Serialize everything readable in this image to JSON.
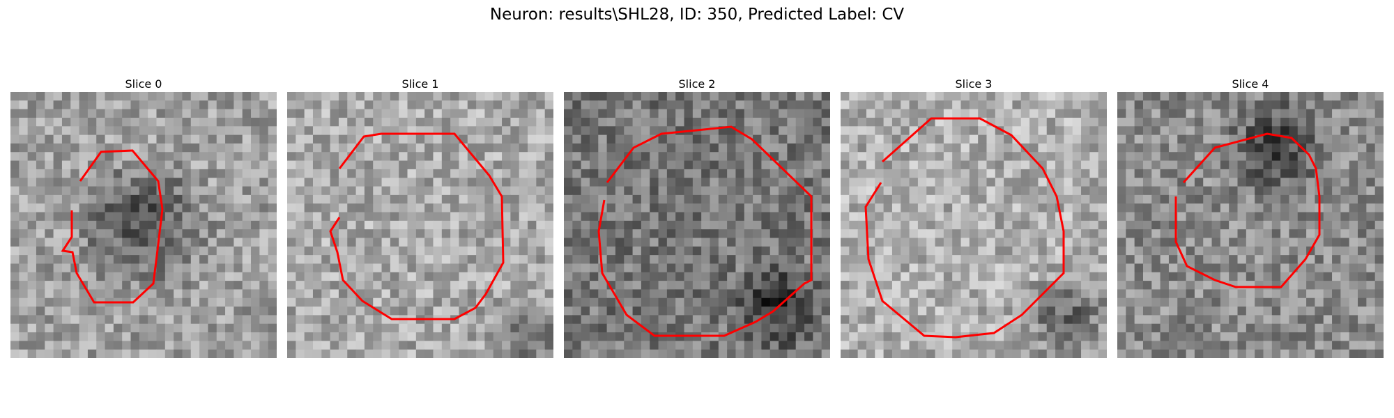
{
  "figure": {
    "title": "Neuron: results\\SHL28, ID: 350, Predicted Label: CV"
  },
  "colors": {
    "contour": "#ff0000",
    "background": "#ffffff"
  },
  "panels": [
    {
      "title": "Slice 0"
    },
    {
      "title": "Slice 1"
    },
    {
      "title": "Slice 2"
    },
    {
      "title": "Slice 3"
    },
    {
      "title": "Slice 4"
    }
  ]
}
